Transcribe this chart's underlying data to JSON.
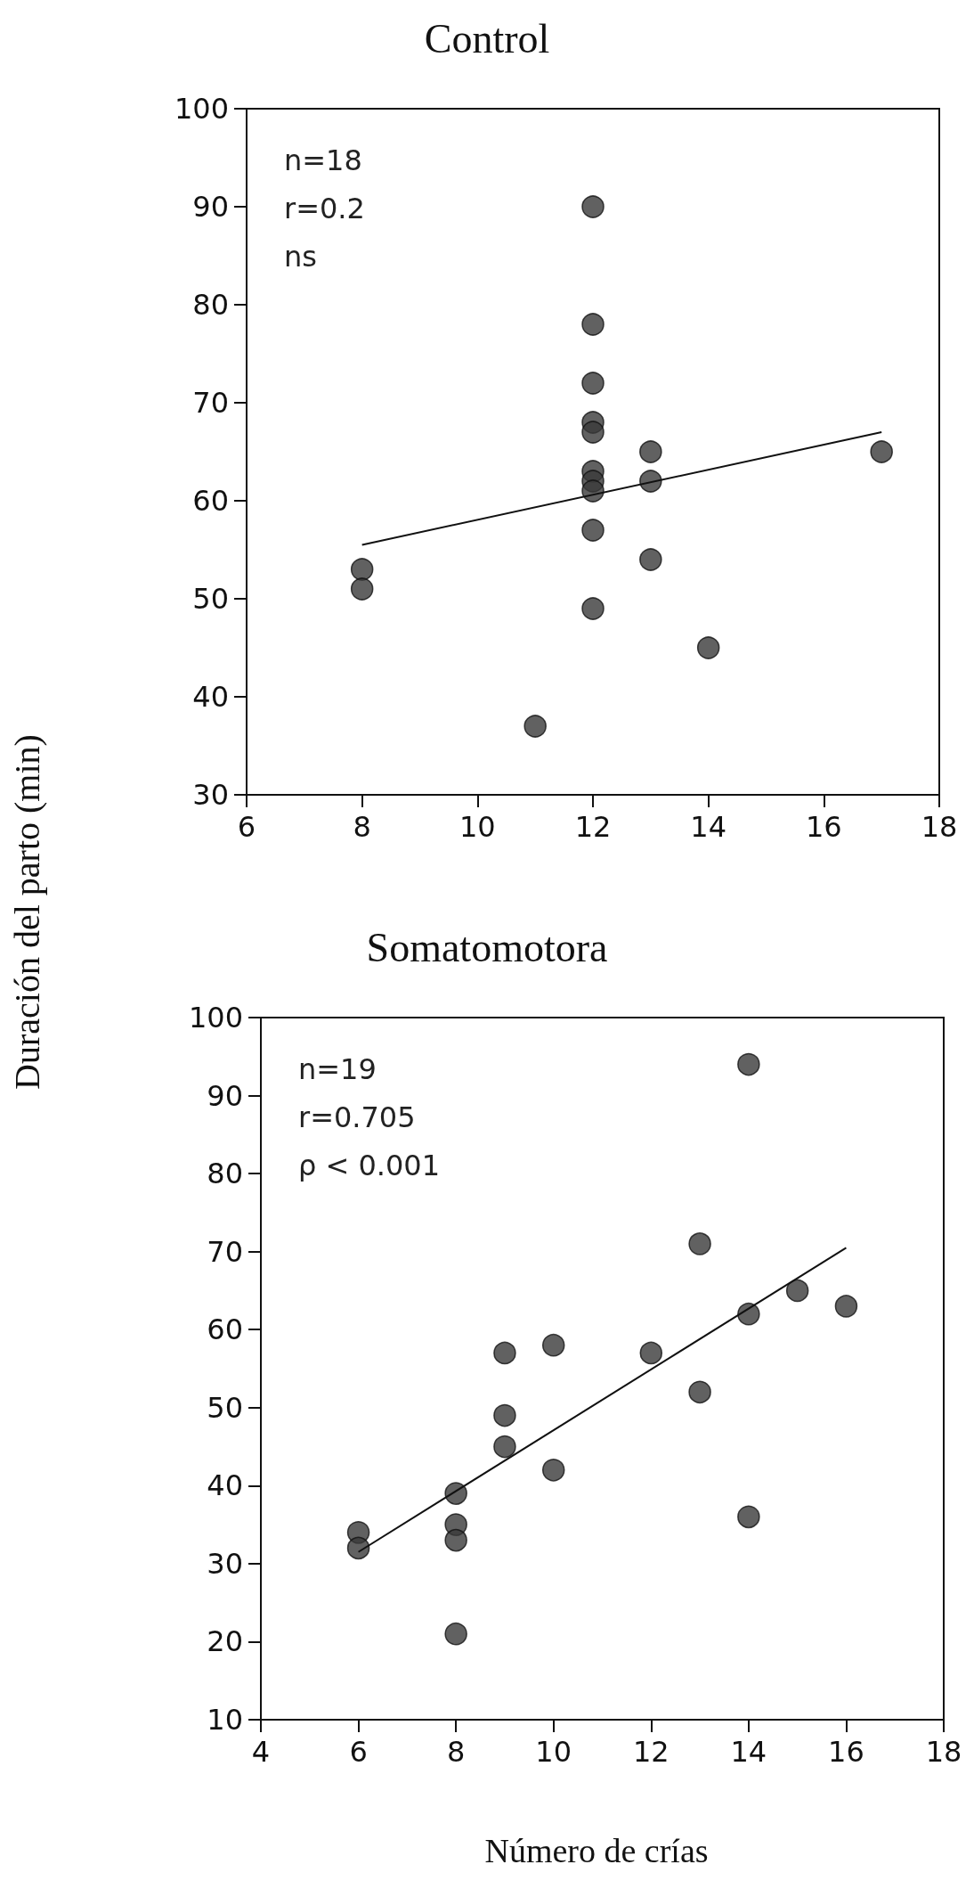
{
  "chart_data": [
    {
      "type": "scatter",
      "title": "Control",
      "ylabel": "Duración del parto (min)",
      "annotations": [
        "n=18",
        "r=0.2",
        "ns"
      ],
      "series": [
        {
          "color": "#3a3a3a",
          "x": [
            8,
            8,
            11,
            12,
            12,
            12,
            12,
            12,
            12,
            12,
            12,
            12,
            12,
            13,
            13,
            13,
            14,
            17
          ],
          "values": [
            53,
            51,
            37,
            90,
            78,
            72,
            68,
            67,
            63,
            62,
            61,
            57,
            49,
            65,
            62,
            54,
            45,
            65
          ]
        },
        {
          "type": "line",
          "color": "#111111",
          "marker": "none",
          "x": [
            8,
            17
          ],
          "values": [
            55.5,
            67
          ]
        }
      ],
      "xlim": [
        6,
        18
      ],
      "xticks": [
        6,
        8,
        10,
        12,
        14,
        16,
        18
      ],
      "ylim": [
        30,
        100
      ],
      "yticks": [
        30,
        40,
        50,
        60,
        70,
        80,
        90,
        100
      ],
      "grid": false,
      "marker": "circle"
    },
    {
      "type": "scatter",
      "title": "Somatomotora",
      "xlabel": "Número de crías",
      "annotations": [
        "n=19",
        "r=0.705",
        "ρ < 0.001"
      ],
      "series": [
        {
          "color": "#3a3a3a",
          "x": [
            6,
            6,
            8,
            8,
            8,
            8,
            9,
            9,
            9,
            10,
            10,
            12,
            13,
            13,
            14,
            14,
            14,
            15,
            16
          ],
          "values": [
            34,
            32,
            39,
            35,
            33,
            21,
            57,
            49,
            45,
            58,
            42,
            57,
            71,
            52,
            94,
            62,
            36,
            65,
            63
          ]
        },
        {
          "type": "line",
          "color": "#111111",
          "marker": "none",
          "x": [
            6,
            16
          ],
          "values": [
            31.5,
            70.5
          ]
        }
      ],
      "xlim": [
        4,
        18
      ],
      "xticks": [
        4,
        6,
        8,
        10,
        12,
        14,
        16,
        18
      ],
      "ylim": [
        10,
        100
      ],
      "yticks": [
        10,
        20,
        30,
        40,
        50,
        60,
        70,
        80,
        90,
        100
      ],
      "grid": false,
      "marker": "circle"
    }
  ]
}
